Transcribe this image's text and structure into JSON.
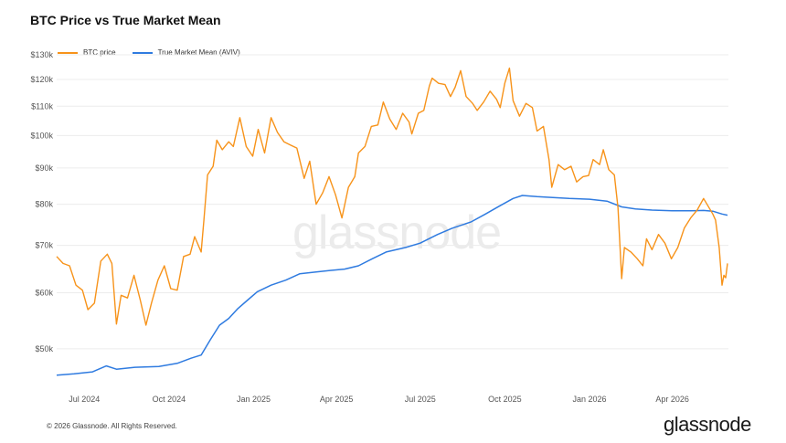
{
  "title": "BTC Price vs True Market Mean",
  "watermark": "glassnode",
  "footer": {
    "copyright": "© 2026 Glassnode. All Rights Reserved.",
    "brand": "glassnode"
  },
  "colors": {
    "price": "#F7931A",
    "mean": "#2F7BE0",
    "grid": "#ececec",
    "axis_text": "#555555"
  },
  "chart_data": {
    "type": "line",
    "title": "BTC Price vs True Market Mean",
    "y_scale": "log",
    "ylim": [
      44000,
      130000
    ],
    "y_ticks": [
      {
        "value": 50000,
        "label": "$50k"
      },
      {
        "value": 60000,
        "label": "$60k"
      },
      {
        "value": 70000,
        "label": "$70k"
      },
      {
        "value": 80000,
        "label": "$80k"
      },
      {
        "value": 90000,
        "label": "$90k"
      },
      {
        "value": 100000,
        "label": "$100k"
      },
      {
        "value": 110000,
        "label": "$110k"
      },
      {
        "value": 120000,
        "label": "$120k"
      },
      {
        "value": 130000,
        "label": "$130k"
      }
    ],
    "xlim": [
      "2024-06-01",
      "2026-06-01"
    ],
    "x_ticks": [
      {
        "value": "2024-07-01",
        "label": "Jul 2024"
      },
      {
        "value": "2024-10-01",
        "label": "Oct 2024"
      },
      {
        "value": "2025-01-01",
        "label": "Jan 2025"
      },
      {
        "value": "2025-04-01",
        "label": "Apr 2025"
      },
      {
        "value": "2025-07-01",
        "label": "Jul 2025"
      },
      {
        "value": "2025-10-01",
        "label": "Oct 2025"
      },
      {
        "value": "2026-01-01",
        "label": "Jan 2026"
      },
      {
        "value": "2026-04-01",
        "label": "Apr 2026"
      }
    ],
    "grid": true,
    "legend_position": "top-left",
    "series": [
      {
        "name": "BTC price",
        "color": "#F7931A",
        "points": [
          [
            "2024-06-01",
            67500
          ],
          [
            "2024-06-08",
            66000
          ],
          [
            "2024-06-15",
            65500
          ],
          [
            "2024-06-22",
            61500
          ],
          [
            "2024-06-29",
            60500
          ],
          [
            "2024-07-05",
            56800
          ],
          [
            "2024-07-12",
            58000
          ],
          [
            "2024-07-19",
            66500
          ],
          [
            "2024-07-26",
            68000
          ],
          [
            "2024-07-31",
            66000
          ],
          [
            "2024-08-05",
            54200
          ],
          [
            "2024-08-10",
            59500
          ],
          [
            "2024-08-17",
            59000
          ],
          [
            "2024-08-24",
            63500
          ],
          [
            "2024-08-31",
            58500
          ],
          [
            "2024-09-06",
            54000
          ],
          [
            "2024-09-12",
            58000
          ],
          [
            "2024-09-19",
            62500
          ],
          [
            "2024-09-26",
            65500
          ],
          [
            "2024-10-03",
            60800
          ],
          [
            "2024-10-10",
            60500
          ],
          [
            "2024-10-17",
            67500
          ],
          [
            "2024-10-24",
            68000
          ],
          [
            "2024-10-29",
            72000
          ],
          [
            "2024-11-05",
            68500
          ],
          [
            "2024-11-08",
            76000
          ],
          [
            "2024-11-12",
            88000
          ],
          [
            "2024-11-18",
            90500
          ],
          [
            "2024-11-22",
            98500
          ],
          [
            "2024-11-28",
            95500
          ],
          [
            "2024-12-05",
            98000
          ],
          [
            "2024-12-10",
            96500
          ],
          [
            "2024-12-17",
            106000
          ],
          [
            "2024-12-24",
            96500
          ],
          [
            "2024-12-31",
            93500
          ],
          [
            "2025-01-06",
            102000
          ],
          [
            "2025-01-13",
            94500
          ],
          [
            "2025-01-20",
            106000
          ],
          [
            "2025-01-27",
            101000
          ],
          [
            "2025-02-03",
            98000
          ],
          [
            "2025-02-10",
            97000
          ],
          [
            "2025-02-17",
            96000
          ],
          [
            "2025-02-25",
            87000
          ],
          [
            "2025-03-03",
            92000
          ],
          [
            "2025-03-10",
            80000
          ],
          [
            "2025-03-17",
            83000
          ],
          [
            "2025-03-24",
            87500
          ],
          [
            "2025-03-31",
            82500
          ],
          [
            "2025-04-07",
            76500
          ],
          [
            "2025-04-14",
            84500
          ],
          [
            "2025-04-21",
            87500
          ],
          [
            "2025-04-25",
            94500
          ],
          [
            "2025-05-02",
            96500
          ],
          [
            "2025-05-09",
            103000
          ],
          [
            "2025-05-16",
            103500
          ],
          [
            "2025-05-22",
            111500
          ],
          [
            "2025-05-29",
            105500
          ],
          [
            "2025-06-05",
            102000
          ],
          [
            "2025-06-12",
            107500
          ],
          [
            "2025-06-19",
            104500
          ],
          [
            "2025-06-22",
            100500
          ],
          [
            "2025-06-29",
            107500
          ],
          [
            "2025-07-05",
            108500
          ],
          [
            "2025-07-11",
            117500
          ],
          [
            "2025-07-14",
            120500
          ],
          [
            "2025-07-21",
            118500
          ],
          [
            "2025-07-28",
            118000
          ],
          [
            "2025-08-03",
            113500
          ],
          [
            "2025-08-08",
            117000
          ],
          [
            "2025-08-14",
            123500
          ],
          [
            "2025-08-20",
            113500
          ],
          [
            "2025-08-27",
            111000
          ],
          [
            "2025-09-01",
            108500
          ],
          [
            "2025-09-08",
            111500
          ],
          [
            "2025-09-15",
            115500
          ],
          [
            "2025-09-22",
            112500
          ],
          [
            "2025-09-26",
            109500
          ],
          [
            "2025-10-01",
            118500
          ],
          [
            "2025-10-06",
            124500
          ],
          [
            "2025-10-10",
            112000
          ],
          [
            "2025-10-17",
            106500
          ],
          [
            "2025-10-24",
            111000
          ],
          [
            "2025-10-31",
            109500
          ],
          [
            "2025-11-05",
            101500
          ],
          [
            "2025-11-12",
            103000
          ],
          [
            "2025-11-18",
            92500
          ],
          [
            "2025-11-21",
            84500
          ],
          [
            "2025-11-28",
            91000
          ],
          [
            "2025-12-05",
            89500
          ],
          [
            "2025-12-12",
            90500
          ],
          [
            "2025-12-18",
            86000
          ],
          [
            "2025-12-25",
            87500
          ],
          [
            "2025-12-31",
            87800
          ],
          [
            "2026-01-05",
            92500
          ],
          [
            "2026-01-12",
            91000
          ],
          [
            "2026-01-16",
            95500
          ],
          [
            "2026-01-22",
            89500
          ],
          [
            "2026-01-28",
            88000
          ],
          [
            "2026-02-01",
            79000
          ],
          [
            "2026-02-05",
            62800
          ],
          [
            "2026-02-08",
            69500
          ],
          [
            "2026-02-15",
            68500
          ],
          [
            "2026-02-22",
            67000
          ],
          [
            "2026-02-28",
            65500
          ],
          [
            "2026-03-04",
            71500
          ],
          [
            "2026-03-10",
            69000
          ],
          [
            "2026-03-17",
            72500
          ],
          [
            "2026-03-24",
            70500
          ],
          [
            "2026-03-31",
            67000
          ],
          [
            "2026-04-07",
            69500
          ],
          [
            "2026-04-14",
            74000
          ],
          [
            "2026-04-21",
            76500
          ],
          [
            "2026-04-28",
            78500
          ],
          [
            "2026-05-05",
            81500
          ],
          [
            "2026-05-10",
            79500
          ],
          [
            "2026-05-15",
            77500
          ],
          [
            "2026-05-18",
            76000
          ],
          [
            "2026-05-22",
            69500
          ],
          [
            "2026-05-25",
            61500
          ],
          [
            "2026-05-27",
            63500
          ],
          [
            "2026-05-29",
            63000
          ],
          [
            "2026-05-31",
            66000
          ]
        ]
      },
      {
        "name": "True Market Mean (AVIV)",
        "color": "#2F7BE0",
        "points": [
          [
            "2024-06-01",
            45900
          ],
          [
            "2024-06-20",
            46100
          ],
          [
            "2024-07-10",
            46400
          ],
          [
            "2024-07-25",
            47300
          ],
          [
            "2024-08-05",
            46800
          ],
          [
            "2024-08-25",
            47100
          ],
          [
            "2024-09-20",
            47200
          ],
          [
            "2024-10-10",
            47700
          ],
          [
            "2024-10-25",
            48500
          ],
          [
            "2024-11-05",
            49000
          ],
          [
            "2024-11-15",
            51500
          ],
          [
            "2024-11-25",
            54000
          ],
          [
            "2024-12-05",
            55200
          ],
          [
            "2024-12-15",
            57000
          ],
          [
            "2024-12-25",
            58500
          ],
          [
            "2025-01-05",
            60200
          ],
          [
            "2025-01-20",
            61500
          ],
          [
            "2025-02-05",
            62500
          ],
          [
            "2025-02-20",
            63800
          ],
          [
            "2025-03-10",
            64200
          ],
          [
            "2025-03-25",
            64500
          ],
          [
            "2025-04-10",
            64800
          ],
          [
            "2025-04-25",
            65500
          ],
          [
            "2025-05-10",
            67000
          ],
          [
            "2025-05-25",
            68500
          ],
          [
            "2025-06-15",
            69500
          ],
          [
            "2025-07-01",
            70500
          ],
          [
            "2025-07-20",
            72500
          ],
          [
            "2025-08-05",
            74000
          ],
          [
            "2025-08-25",
            75500
          ],
          [
            "2025-09-10",
            77500
          ],
          [
            "2025-09-25",
            79500
          ],
          [
            "2025-10-10",
            81500
          ],
          [
            "2025-10-20",
            82300
          ],
          [
            "2025-11-05",
            82000
          ],
          [
            "2025-11-20",
            81800
          ],
          [
            "2025-12-10",
            81500
          ],
          [
            "2026-01-01",
            81300
          ],
          [
            "2026-01-20",
            80800
          ],
          [
            "2026-02-05",
            79300
          ],
          [
            "2026-02-20",
            78800
          ],
          [
            "2026-03-10",
            78500
          ],
          [
            "2026-04-01",
            78300
          ],
          [
            "2026-04-20",
            78300
          ],
          [
            "2026-05-05",
            78400
          ],
          [
            "2026-05-15",
            78200
          ],
          [
            "2026-05-25",
            77500
          ],
          [
            "2026-05-31",
            77200
          ]
        ]
      }
    ]
  }
}
